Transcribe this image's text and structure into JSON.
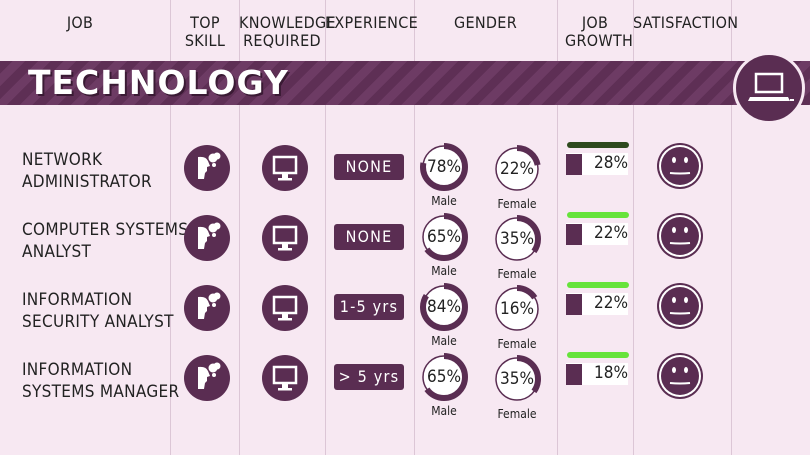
{
  "headers": {
    "job": "JOB",
    "top_skill": "TOP SKILL",
    "knowledge": "KNOWLEDGE REQUIRED",
    "experience": "EXPERIENCE",
    "gender": "GENDER",
    "growth": "JOB GROWTH",
    "satisfaction": "SATISFACTION"
  },
  "banner": {
    "title": "TECHNOLOGY",
    "icon": "laptop-icon"
  },
  "rows": [
    {
      "job_line1": "NETWORK",
      "job_line2": "ADMINISTRATOR",
      "experience": "NONE",
      "male_pct": "78%",
      "female_pct": "22%",
      "male_label": "Male",
      "female_label": "Female",
      "male_fraction": 0.78,
      "female_fraction": 0.22,
      "growth_pct": "28%",
      "growth_fraction": 0.28,
      "growth_bar_color": "#2e4a1e"
    },
    {
      "job_line1": "COMPUTER SYSTEMS",
      "job_line2": "ANALYST",
      "experience": "NONE",
      "male_pct": "65%",
      "female_pct": "35%",
      "male_label": "Male",
      "female_label": "Female",
      "male_fraction": 0.65,
      "female_fraction": 0.35,
      "growth_pct": "22%",
      "growth_fraction": 0.22,
      "growth_bar_color": "#66e33b"
    },
    {
      "job_line1": "INFORMATION",
      "job_line2": "SECURITY ANALYST",
      "experience": "1-5 yrs",
      "male_pct": "84%",
      "female_pct": "16%",
      "male_label": "Male",
      "female_label": "Female",
      "male_fraction": 0.84,
      "female_fraction": 0.16,
      "growth_pct": "22%",
      "growth_fraction": 0.22,
      "growth_bar_color": "#66e33b"
    },
    {
      "job_line1": "INFORMATION",
      "job_line2": "SYSTEMS MANAGER",
      "experience": "> 5 yrs",
      "male_pct": "65%",
      "female_pct": "35%",
      "male_label": "Male",
      "female_label": "Female",
      "male_fraction": 0.65,
      "female_fraction": 0.35,
      "growth_pct": "18%",
      "growth_fraction": 0.18,
      "growth_bar_color": "#66e33b"
    }
  ],
  "icons": {
    "top_skill": "thinking-head-icon",
    "knowledge": "monitor-icon",
    "satisfaction": "neutral-face-icon"
  },
  "colors": {
    "primary": "#5a2d52",
    "background": "#f7e8f2",
    "growth_green": "#66e33b"
  }
}
